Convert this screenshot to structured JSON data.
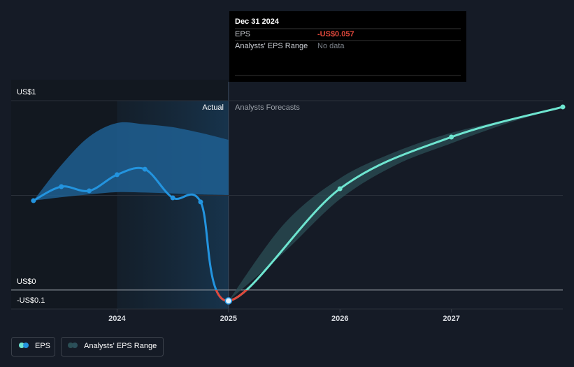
{
  "chart_data": {
    "type": "line",
    "xlim": [
      2023.05,
      2028
    ],
    "xticks": [
      2024,
      2025,
      2026,
      2027
    ],
    "ylim": [
      -0.1,
      1
    ],
    "yticks": [
      {
        "value": -0.1,
        "label": "-US$0.1"
      },
      {
        "value": 0,
        "label": "US$0"
      },
      {
        "value": 1,
        "label": "US$1"
      }
    ],
    "gridlines": [
      0.5
    ],
    "forecast_start": 2025,
    "actual_label": "Actual",
    "forecast_label": "Analysts Forecasts",
    "series": [
      {
        "name": "EPS",
        "color": "#2394df",
        "forecast_color": "#6ee5d0",
        "negative_color": "#e0483b",
        "x": [
          2023.25,
          2023.5,
          2023.75,
          2024,
          2024.25,
          2024.5,
          2024.75,
          2025,
          2026,
          2027,
          2028
        ],
        "values": [
          0.472,
          0.546,
          0.524,
          0.609,
          0.638,
          0.487,
          0.465,
          -0.057,
          0.535,
          0.808,
          0.967
        ]
      },
      {
        "name": "Analysts' EPS Range",
        "color": "#2b4f5a",
        "bands": [
          {
            "color": "#1f5f92",
            "x": [
              2023.25,
              2023.5,
              2023.75,
              2024,
              2024.25,
              2024.5,
              2024.75,
              2025
            ],
            "low": [
              0.472,
              0.49,
              0.505,
              0.517,
              0.515,
              0.51,
              0.505,
              0.502
            ],
            "high": [
              0.472,
              0.66,
              0.81,
              0.882,
              0.875,
              0.86,
              0.83,
              0.793
            ]
          },
          {
            "color": "#2b4f55",
            "x": [
              2025,
              2025.5,
              2026,
              2026.5,
              2027,
              2027.5,
              2028
            ],
            "low": [
              -0.057,
              0.2,
              0.48,
              0.66,
              0.775,
              0.88,
              0.967
            ],
            "high": [
              -0.057,
              0.35,
              0.59,
              0.73,
              0.83,
              0.9,
              0.967
            ]
          }
        ]
      }
    ],
    "tooltip": {
      "date": "Dec 31 2024",
      "rows": [
        {
          "label": "EPS",
          "value_label": "-US$0.057"
        },
        {
          "label": "Analysts' EPS Range",
          "value_label": "No data"
        }
      ]
    }
  }
}
